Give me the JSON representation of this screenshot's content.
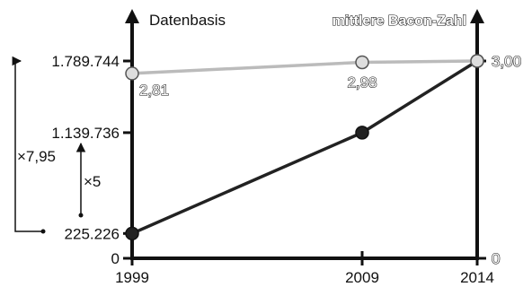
{
  "chart_data": {
    "type": "line",
    "x": [
      1999,
      2009,
      2014
    ],
    "x_tick_labels": [
      "1999",
      "2009",
      "2014"
    ],
    "left_axis": {
      "label": "Datenbasis",
      "tick_values": [
        0,
        225226,
        1139736,
        1789744
      ],
      "tick_labels": [
        "0",
        "225.226",
        "1.139.736",
        "1.789.744"
      ],
      "ylim": [
        0,
        1789744
      ]
    },
    "right_axis": {
      "label": "mittlere Bacon-Zahl",
      "tick_values": [
        0,
        3.0
      ],
      "tick_labels": [
        "0",
        "3,00"
      ],
      "ylim": [
        0,
        3.0
      ]
    },
    "series": [
      {
        "axis": "left",
        "color": "#222222",
        "values": [
          225226,
          1139736,
          1789744
        ]
      },
      {
        "axis": "right",
        "color": "#bbbbbb",
        "values": [
          2.81,
          2.98,
          3.0
        ],
        "data_labels": [
          "2,81",
          "2,98",
          ""
        ]
      }
    ],
    "annotations": [
      {
        "text": "×7,95",
        "from": 225226,
        "to": 1789744
      },
      {
        "text": "×5",
        "from": 225226,
        "to": 1139736
      }
    ],
    "grid": false,
    "legend": "none"
  }
}
